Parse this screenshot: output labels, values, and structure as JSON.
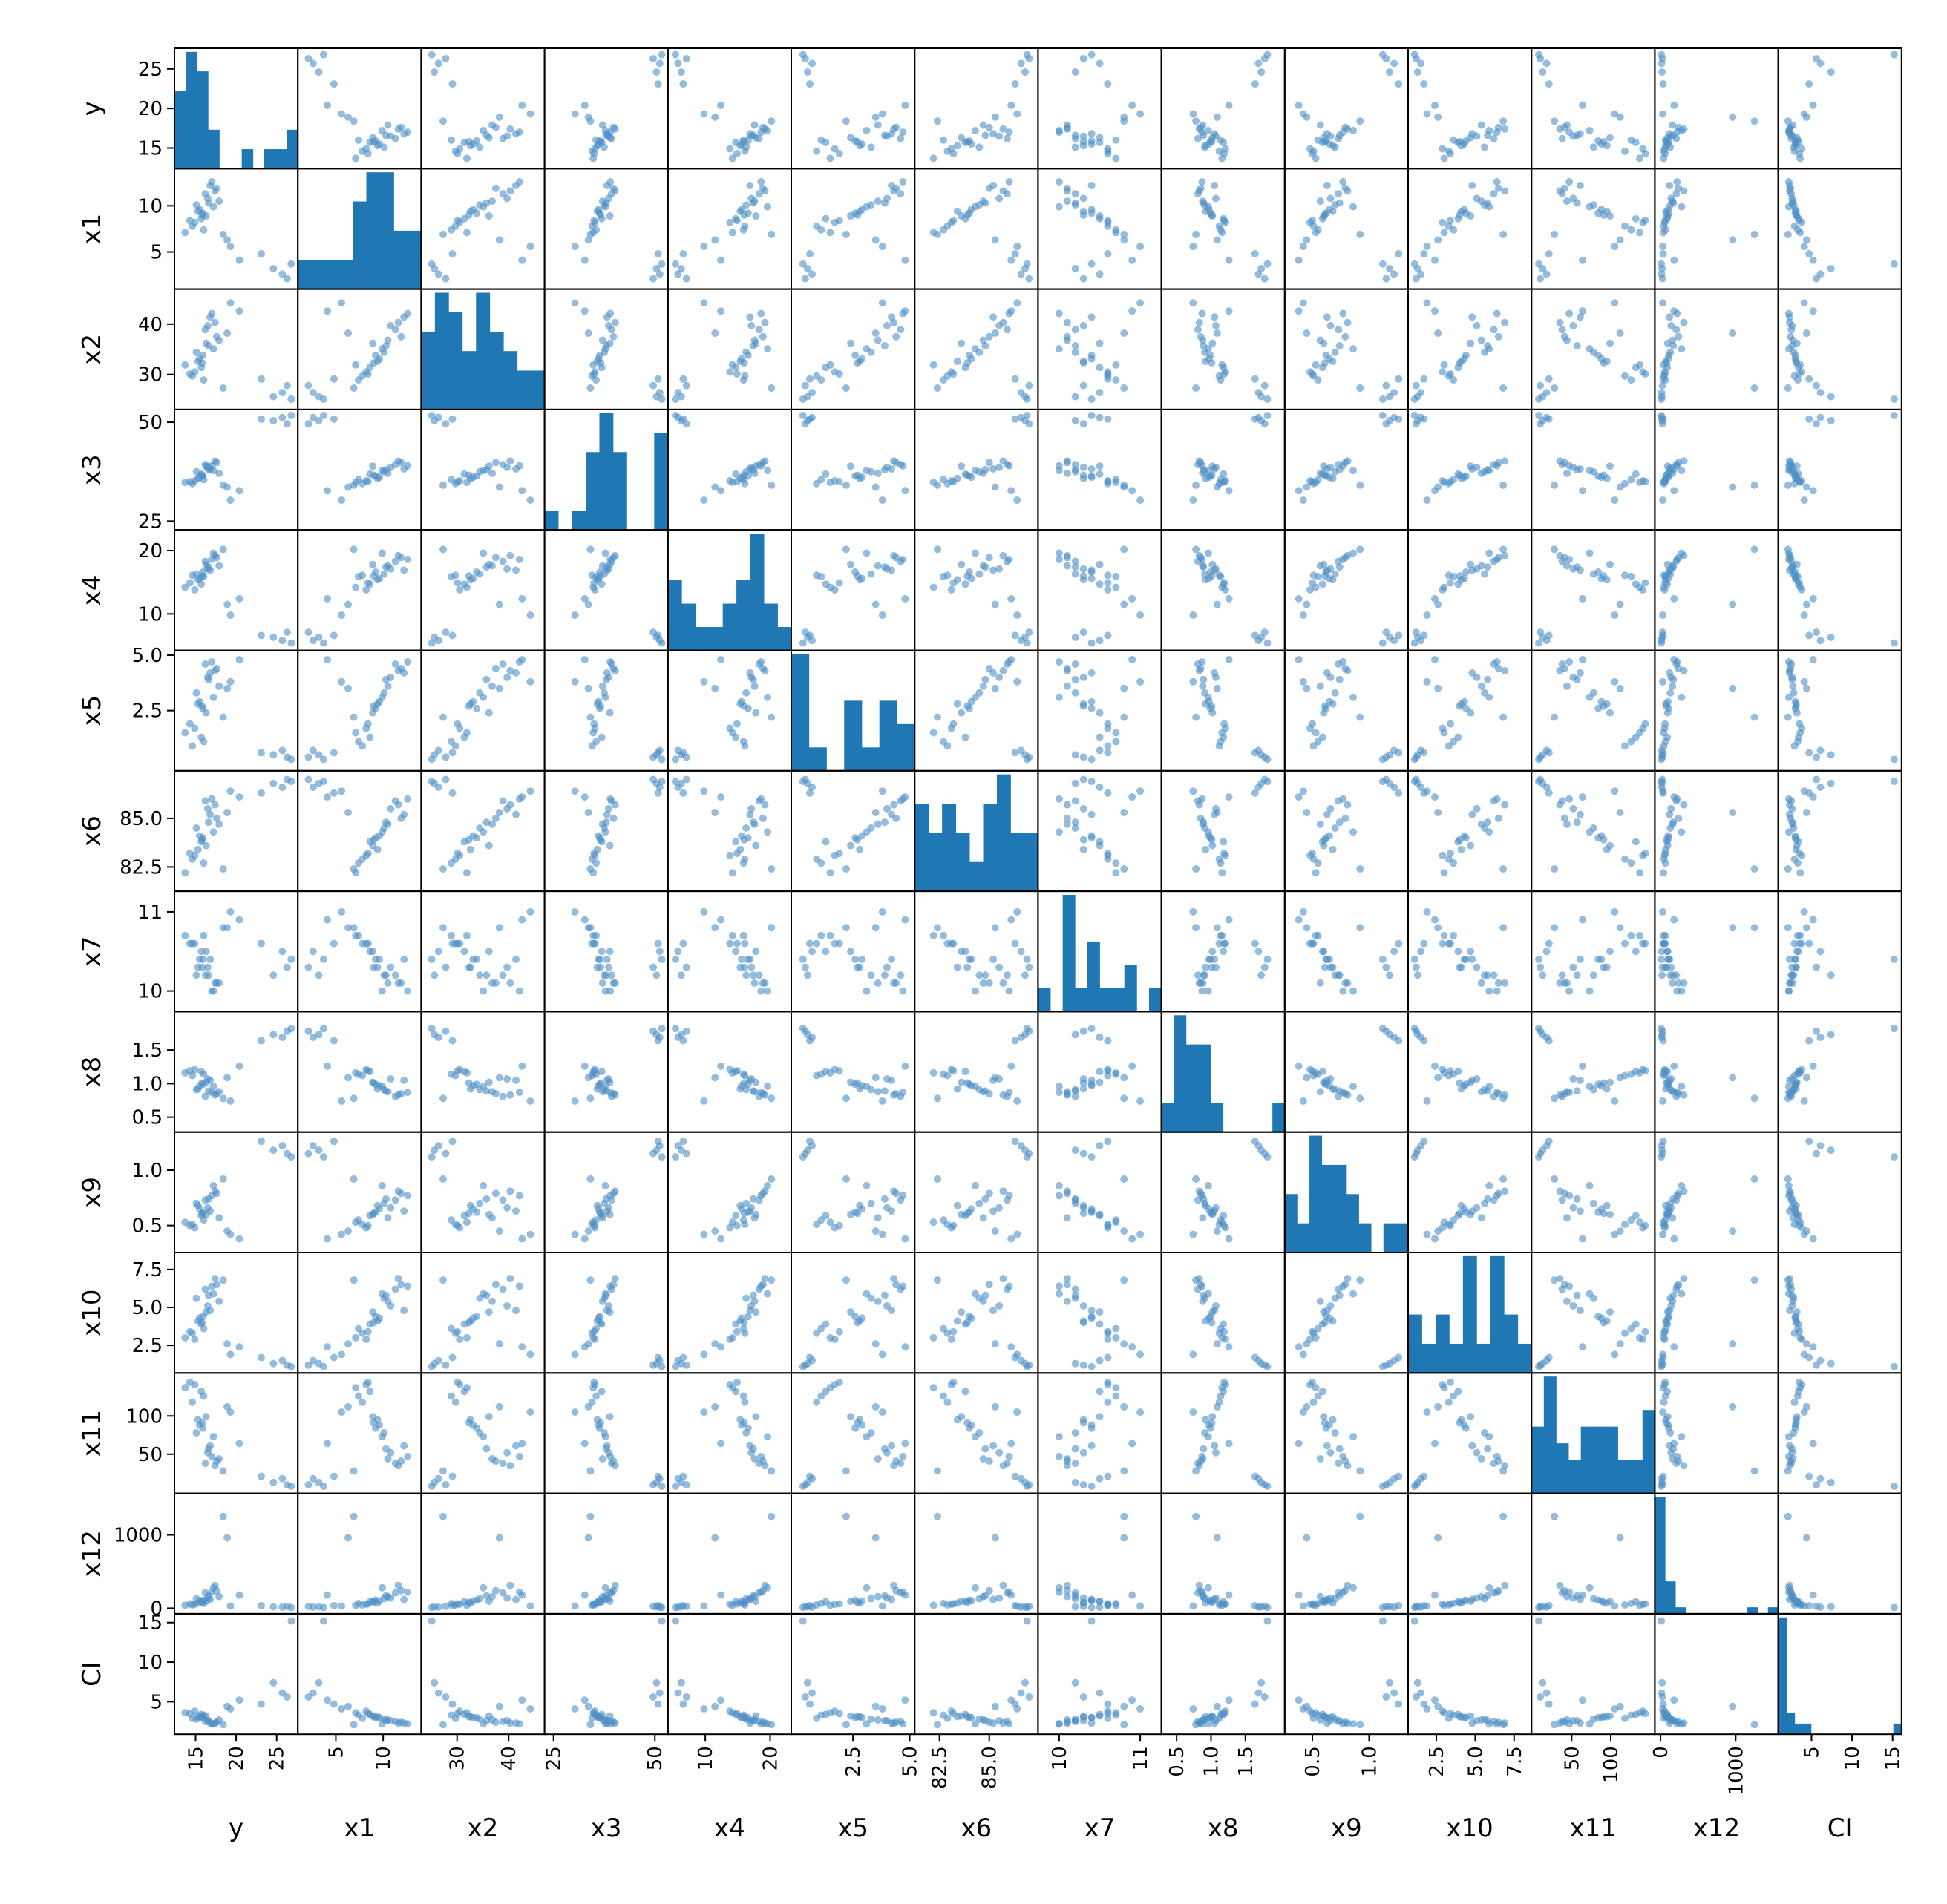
{
  "chart_data": {
    "type": "scatter_matrix",
    "title": "",
    "variables": [
      "y",
      "x1",
      "x2",
      "x3",
      "x4",
      "x5",
      "x6",
      "x7",
      "x8",
      "x9",
      "x10",
      "x11",
      "x12",
      "CI"
    ],
    "colors": {
      "marker": "#4f8fc4",
      "bar": "#1f77b4",
      "frame": "#000000"
    },
    "axes": {
      "y": {
        "range": [
          13.0,
          27.0
        ],
        "ticks": [
          "15",
          "20",
          "25"
        ],
        "tick_values": [
          15,
          20,
          25
        ]
      },
      "x1": {
        "range": [
          1.5,
          13.5
        ],
        "ticks": [
          "5",
          "10"
        ],
        "tick_values": [
          5,
          10
        ]
      },
      "x2": {
        "range": [
          24.0,
          46.0
        ],
        "ticks": [
          "30",
          "40"
        ],
        "tick_values": [
          30,
          40
        ]
      },
      "x3": {
        "range": [
          24.0,
          52.0
        ],
        "ticks": [
          "25",
          "50"
        ],
        "tick_values": [
          25,
          50
        ]
      },
      "x4": {
        "range": [
          5.0,
          22.5
        ],
        "ticks": [
          "10",
          "20"
        ],
        "tick_values": [
          10,
          20
        ]
      },
      "x5": {
        "range": [
          0.0,
          5.0
        ],
        "ticks": [
          "2.5",
          "5.0"
        ],
        "tick_values": [
          2.5,
          5.0
        ]
      },
      "x6": {
        "range": [
          81.5,
          87.2
        ],
        "ticks": [
          "82.5",
          "85.0"
        ],
        "tick_values": [
          82.5,
          85.0
        ]
      },
      "x7": {
        "range": [
          9.8,
          11.2
        ],
        "ticks": [
          "10",
          "11"
        ],
        "tick_values": [
          10,
          11
        ]
      },
      "x8": {
        "range": [
          0.35,
          2.0
        ],
        "ticks": [
          "0.5",
          "1.0",
          "1.5"
        ],
        "tick_values": [
          0.5,
          1.0,
          1.5
        ]
      },
      "x9": {
        "range": [
          0.3,
          1.3
        ],
        "ticks": [
          "0.5",
          "1.0"
        ],
        "tick_values": [
          0.5,
          1.0
        ]
      },
      "x10": {
        "range": [
          1.0,
          8.3
        ],
        "ticks": [
          "2.5",
          "5.0",
          "7.5"
        ],
        "tick_values": [
          2.5,
          5.0,
          7.5
        ]
      },
      "x11": {
        "range": [
          5.0,
          150.0
        ],
        "ticks": [
          "50",
          "100"
        ],
        "tick_values": [
          50,
          100
        ]
      },
      "x12": {
        "range": [
          -10.0,
          1500.0
        ],
        "ticks": [
          "0",
          "1000"
        ],
        "tick_values": [
          0,
          1000
        ]
      },
      "CI": {
        "range": [
          1.5,
          15.5
        ],
        "ticks": [
          "5",
          "10",
          "15"
        ],
        "tick_values": [
          5,
          10,
          15
        ]
      }
    },
    "histograms": {
      "y": [
        4,
        6,
        5,
        2,
        0,
        0,
        1,
        0,
        1,
        1,
        2
      ],
      "x1": [
        1,
        1,
        1,
        1,
        3,
        4,
        4,
        2,
        2
      ],
      "x2": [
        4,
        6,
        5,
        3,
        6,
        4,
        3,
        2,
        2
      ],
      "x3": [
        1,
        0,
        1,
        4,
        6,
        4,
        0,
        0,
        5
      ],
      "x4": [
        3,
        2,
        1,
        1,
        2,
        3,
        5,
        2,
        1
      ],
      "x5": [
        5,
        1,
        0,
        3,
        1,
        3,
        2
      ],
      "x6": [
        3,
        2,
        3,
        2,
        1,
        3,
        4,
        2,
        2
      ],
      "x7": [
        1,
        0,
        5,
        1,
        3,
        1,
        1,
        2,
        0,
        1
      ],
      "x8": [
        1,
        4,
        3,
        3,
        1,
        0,
        0,
        0,
        0,
        1
      ],
      "x9": [
        2,
        1,
        4,
        3,
        3,
        2,
        1,
        0,
        1,
        1
      ],
      "x10": [
        2,
        1,
        2,
        1,
        4,
        1,
        4,
        2,
        1
      ],
      "x11": [
        4,
        7,
        3,
        2,
        4,
        4,
        4,
        2,
        2,
        5
      ],
      "x12": [
        18,
        5,
        1,
        0,
        0,
        0,
        0,
        0,
        0,
        1,
        0,
        1
      ],
      "CI": [
        11,
        2,
        1,
        1,
        0,
        0,
        0,
        0,
        0,
        0,
        0,
        0,
        0,
        0,
        1
      ]
    },
    "records": [
      {
        "y": 16.8,
        "x1": 12.2,
        "x2": 41.4,
        "x3": 38.2,
        "x4": 16.9,
        "x5": 4.2,
        "x6": 85.2,
        "x7": 10.4,
        "x8": 1.05,
        "x9": 0.63,
        "x10": 4.8,
        "x11": 61,
        "x12": 120,
        "CI": 2.3
      },
      {
        "y": 17.9,
        "x1": 10.5,
        "x2": 36.8,
        "x3": 37.1,
        "x4": 17.6,
        "x5": 3.6,
        "x6": 84.7,
        "x7": 10.1,
        "x8": 0.88,
        "x9": 0.57,
        "x10": 5.4,
        "x11": 44,
        "x12": 160,
        "CI": 2.7
      },
      {
        "y": 15.3,
        "x1": 9.4,
        "x2": 32.6,
        "x3": 35.8,
        "x4": 15.4,
        "x5": 2.8,
        "x6": 83.4,
        "x7": 10.3,
        "x8": 0.92,
        "x9": 0.68,
        "x10": 4.1,
        "x11": 95,
        "x12": 70,
        "CI": 3.1
      },
      {
        "y": 14.6,
        "x1": 7.8,
        "x2": 29.7,
        "x3": 34.5,
        "x4": 16.1,
        "x5": 0.9,
        "x6": 82.9,
        "x7": 10.6,
        "x8": 1.12,
        "x9": 0.51,
        "x10": 3.3,
        "x11": 118,
        "x12": 45,
        "CI": 2.9
      },
      {
        "y": 16.2,
        "x1": 11.3,
        "x2": 38.9,
        "x3": 39.3,
        "x4": 18.3,
        "x5": 4.6,
        "x6": 85.9,
        "x7": 10.2,
        "x8": 0.81,
        "x9": 0.73,
        "x10": 6.2,
        "x11": 38,
        "x12": 210,
        "CI": 2.5
      },
      {
        "y": 15.7,
        "x1": 8.6,
        "x2": 31.4,
        "x3": 36.9,
        "x4": 14.7,
        "x5": 1.3,
        "x6": 83.8,
        "x7": 10.5,
        "x8": 1.18,
        "x9": 0.59,
        "x10": 3.9,
        "x11": 132,
        "x12": 90,
        "CI": 3.4
      },
      {
        "y": 17.2,
        "x1": 9.9,
        "x2": 35.1,
        "x3": 37.8,
        "x4": 19.6,
        "x5": 3.1,
        "x6": 84.3,
        "x7": 10.0,
        "x8": 0.96,
        "x9": 0.86,
        "x10": 5.9,
        "x11": 73,
        "x12": 280,
        "CI": 2.2
      },
      {
        "y": 18.4,
        "x1": 6.9,
        "x2": 27.3,
        "x3": 34.1,
        "x4": 20.2,
        "x5": 2.2,
        "x6": 82.4,
        "x7": 10.8,
        "x8": 0.78,
        "x9": 0.92,
        "x10": 6.8,
        "x11": 28,
        "x12": 1250,
        "CI": 2.1
      },
      {
        "y": 16.5,
        "x1": 10.8,
        "x2": 39.7,
        "x3": 38.6,
        "x4": 17.1,
        "x5": 4.0,
        "x6": 85.5,
        "x7": 10.3,
        "x8": 1.07,
        "x9": 0.66,
        "x10": 5.1,
        "x11": 52,
        "x12": 140,
        "CI": 2.6
      },
      {
        "y": 14.9,
        "x1": 8.2,
        "x2": 30.5,
        "x3": 35.2,
        "x4": 13.8,
        "x5": 1.7,
        "x6": 83.1,
        "x7": 10.6,
        "x8": 1.21,
        "x9": 0.48,
        "x10": 2.9,
        "x11": 141,
        "x12": 55,
        "CI": 3.8
      },
      {
        "y": 15.9,
        "x1": 9.2,
        "x2": 33.8,
        "x3": 36.4,
        "x4": 16.6,
        "x5": 2.6,
        "x6": 84.0,
        "x7": 10.4,
        "x8": 0.99,
        "x9": 0.62,
        "x10": 4.4,
        "x11": 84,
        "x12": 110,
        "CI": 3.0
      },
      {
        "y": 19.3,
        "x1": 5.6,
        "x2": 44.2,
        "x3": 30.3,
        "x4": 9.8,
        "x5": 3.8,
        "x6": 86.4,
        "x7": 11.0,
        "x8": 0.74,
        "x9": 0.42,
        "x10": 1.9,
        "x11": 105,
        "x12": 30,
        "CI": 4.1
      },
      {
        "y": 17.6,
        "x1": 11.9,
        "x2": 37.5,
        "x3": 39.8,
        "x4": 18.9,
        "x5": 4.4,
        "x6": 85.0,
        "x7": 10.1,
        "x8": 0.85,
        "x9": 0.79,
        "x10": 6.5,
        "x11": 41,
        "x12": 240,
        "CI": 2.4
      },
      {
        "y": 16.0,
        "x1": 7.4,
        "x2": 28.9,
        "x3": 35.5,
        "x4": 15.9,
        "x5": 1.1,
        "x6": 82.7,
        "x7": 10.7,
        "x8": 1.14,
        "x9": 0.55,
        "x10": 3.6,
        "x11": 126,
        "x12": 65,
        "CI": 3.3
      },
      {
        "y": 20.4,
        "x1": 4.1,
        "x2": 42.6,
        "x3": 32.7,
        "x4": 12.4,
        "x5": 4.8,
        "x6": 86.1,
        "x7": 10.9,
        "x8": 1.26,
        "x9": 0.38,
        "x10": 2.4,
        "x11": 64,
        "x12": 180,
        "CI": 5.2
      },
      {
        "y": 24.6,
        "x1": 3.2,
        "x2": 25.6,
        "x3": 50.4,
        "x4": 6.3,
        "x5": 0.5,
        "x6": 86.8,
        "x7": 10.2,
        "x8": 1.73,
        "x9": 1.18,
        "x10": 1.3,
        "x11": 13,
        "x12": 20,
        "CI": 7.4
      },
      {
        "y": 25.7,
        "x1": 2.6,
        "x2": 26.4,
        "x3": 51.2,
        "x4": 5.8,
        "x5": 0.7,
        "x6": 86.6,
        "x7": 10.5,
        "x8": 1.69,
        "x9": 1.22,
        "x10": 1.5,
        "x11": 18,
        "x12": 15,
        "CI": 6.1
      },
      {
        "y": 26.3,
        "x1": 2.1,
        "x2": 27.8,
        "x3": 49.6,
        "x4": 7.1,
        "x5": 0.4,
        "x6": 87.0,
        "x7": 10.3,
        "x8": 1.78,
        "x9": 1.15,
        "x10": 1.2,
        "x11": 10,
        "x12": 25,
        "CI": 5.6
      },
      {
        "y": 23.1,
        "x1": 4.8,
        "x2": 29.1,
        "x3": 50.8,
        "x4": 6.6,
        "x5": 0.6,
        "x6": 86.3,
        "x7": 10.6,
        "x8": 1.64,
        "x9": 1.26,
        "x10": 1.7,
        "x11": 21,
        "x12": 35,
        "CI": 4.7
      },
      {
        "y": 26.8,
        "x1": 3.7,
        "x2": 25.1,
        "x3": 51.7,
        "x4": 5.4,
        "x5": 0.3,
        "x6": 86.9,
        "x7": 10.4,
        "x8": 1.82,
        "x9": 1.12,
        "x10": 1.1,
        "x11": 8,
        "x12": 10,
        "CI": 15.2
      },
      {
        "y": 15.1,
        "x1": 10.1,
        "x2": 34.4,
        "x3": 37.5,
        "x4": 16.3,
        "x5": 3.3,
        "x6": 84.5,
        "x7": 10.2,
        "x8": 0.91,
        "x9": 0.7,
        "x10": 5.6,
        "x11": 78,
        "x12": 130,
        "CI": 2.8
      },
      {
        "y": 16.3,
        "x1": 8.9,
        "x2": 36.2,
        "x3": 38.9,
        "x4": 17.8,
        "x5": 2.4,
        "x6": 83.6,
        "x7": 10.5,
        "x8": 1.02,
        "x9": 0.6,
        "x10": 4.7,
        "x11": 99,
        "x12": 95,
        "CI": 3.2
      },
      {
        "y": 13.7,
        "x1": 7.1,
        "x2": 31.9,
        "x3": 34.8,
        "x4": 14.2,
        "x5": 1.5,
        "x6": 82.2,
        "x7": 10.7,
        "x8": 1.16,
        "x9": 0.53,
        "x10": 3.0,
        "x11": 137,
        "x12": 40,
        "CI": 3.6
      },
      {
        "y": 17.4,
        "x1": 11.6,
        "x2": 40.3,
        "x3": 40.2,
        "x4": 19.2,
        "x5": 4.3,
        "x6": 85.7,
        "x7": 10.1,
        "x8": 0.83,
        "x9": 0.81,
        "x10": 6.9,
        "x11": 35,
        "x12": 310,
        "CI": 2.3
      },
      {
        "y": 15.5,
        "x1": 9.6,
        "x2": 33.1,
        "x3": 36.1,
        "x4": 15.6,
        "x5": 2.9,
        "x6": 84.1,
        "x7": 10.4,
        "x8": 0.97,
        "x9": 0.65,
        "x10": 4.3,
        "x11": 88,
        "x12": 100,
        "CI": 3.0
      },
      {
        "y": 18.9,
        "x1": 6.3,
        "x2": 38.2,
        "x3": 33.6,
        "x4": 11.5,
        "x5": 3.5,
        "x6": 85.3,
        "x7": 10.8,
        "x8": 1.09,
        "x9": 0.45,
        "x10": 2.6,
        "x11": 112,
        "x12": 960,
        "CI": 4.4
      },
      {
        "y": 16.6,
        "x1": 10.3,
        "x2": 35.7,
        "x3": 38.0,
        "x4": 17.4,
        "x5": 3.9,
        "x6": 84.8,
        "x7": 10.2,
        "x8": 0.89,
        "x9": 0.74,
        "x10": 5.8,
        "x11": 57,
        "x12": 170,
        "CI": 2.6
      },
      {
        "y": 14.3,
        "x1": 8.4,
        "x2": 30.1,
        "x3": 35.0,
        "x4": 14.9,
        "x5": 1.9,
        "x6": 83.2,
        "x7": 10.6,
        "x8": 1.19,
        "x9": 0.5,
        "x10": 3.4,
        "x11": 144,
        "x12": 60,
        "CI": 3.5
      },
      {
        "y": 15.8,
        "x1": 9.0,
        "x2": 32.3,
        "x3": 36.6,
        "x4": 16.0,
        "x5": 2.7,
        "x6": 83.9,
        "x7": 10.3,
        "x8": 1.01,
        "x9": 0.61,
        "x10": 4.0,
        "x11": 91,
        "x12": 80,
        "CI": 3.1
      },
      {
        "y": 17.0,
        "x1": 12.6,
        "x2": 42.1,
        "x3": 39.0,
        "x4": 18.6,
        "x5": 4.7,
        "x6": 86.0,
        "x7": 10.0,
        "x8": 0.87,
        "x9": 0.77,
        "x10": 6.4,
        "x11": 47,
        "x12": 220,
        "CI": 2.2
      }
    ]
  }
}
